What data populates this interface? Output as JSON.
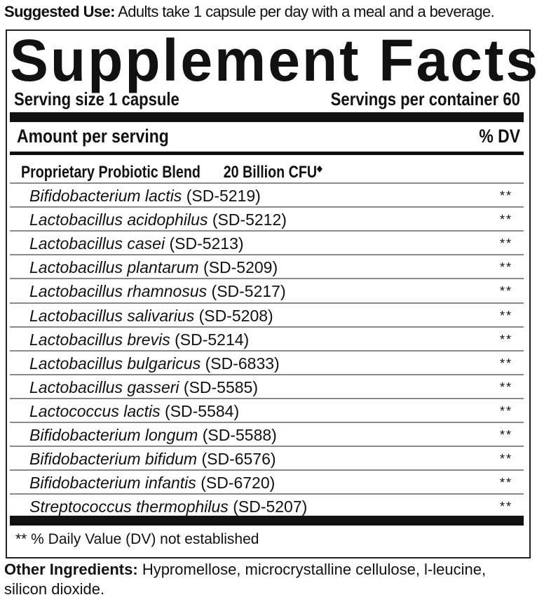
{
  "suggested_use": {
    "label": "Suggested Use:",
    "text": "Adults take 1 capsule per day with a meal and a beverage."
  },
  "title": "Supplement Facts",
  "serving_size": "Serving size 1 capsule",
  "servings_per_container": "Servings per container 60",
  "amount_per_serving": "Amount per serving",
  "dv_header": "% DV",
  "blend": {
    "name": "Proprietary Probiotic Blend",
    "amount": "20 Billion CFU",
    "mark": "◆"
  },
  "ingredients": [
    {
      "name": "Bifidobacterium lactis",
      "code": "(SD-5219)",
      "dv": "**"
    },
    {
      "name": "Lactobacillus acidophilus",
      "code": "(SD-5212)",
      "dv": "**"
    },
    {
      "name": "Lactobacillus casei",
      "code": "(SD-5213)",
      "dv": "**"
    },
    {
      "name": "Lactobacillus plantarum",
      "code": "(SD-5209)",
      "dv": "**"
    },
    {
      "name": "Lactobacillus rhamnosus",
      "code": "(SD-5217)",
      "dv": "**"
    },
    {
      "name": "Lactobacillus salivarius",
      "code": "(SD-5208)",
      "dv": "**"
    },
    {
      "name": "Lactobacillus brevis",
      "code": "(SD-5214)",
      "dv": "**"
    },
    {
      "name": "Lactobacillus bulgaricus",
      "code": "(SD-6833)",
      "dv": "**"
    },
    {
      "name": "Lactobacillus gasseri",
      "code": "(SD-5585)",
      "dv": "**"
    },
    {
      "name": "Lactococcus lactis",
      "code": "(SD-5584)",
      "dv": "**"
    },
    {
      "name": "Bifidobacterium longum",
      "code": "(SD-5588)",
      "dv": "**"
    },
    {
      "name": "Bifidobacterium bifidum",
      "code": "(SD-6576)",
      "dv": "**"
    },
    {
      "name": "Bifidobacterium infantis",
      "code": "(SD-6720)",
      "dv": "**"
    },
    {
      "name": "Streptococcus thermophilus",
      "code": "(SD-5207)",
      "dv": "**"
    }
  ],
  "footnote": "** % Daily Value (DV) not established",
  "other_ingredients": {
    "label": "Other Ingredients:",
    "text": "Hypromellose, microcrystalline cellulose, l-leucine, silicon dioxide."
  }
}
